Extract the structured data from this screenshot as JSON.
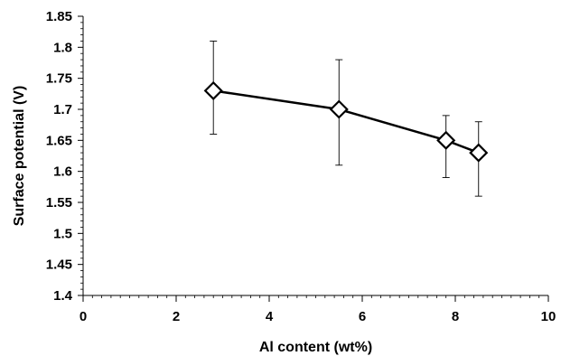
{
  "chart_data": {
    "type": "scatter",
    "title": "",
    "xlabel": "Al content (wt%)",
    "ylabel": "Surface potential (V)",
    "xlim": [
      0,
      10
    ],
    "ylim": [
      1.4,
      1.85
    ],
    "x_ticks": [
      "0",
      "2",
      "4",
      "6",
      "8",
      "10"
    ],
    "y_ticks": [
      "1.4",
      "1.45",
      "1.5",
      "1.55",
      "1.6",
      "1.65",
      "1.7",
      "1.75",
      "1.8",
      "1.85"
    ],
    "grid": false,
    "legend": "none",
    "marker": "diamond-open",
    "line": "solid",
    "color": "#000000",
    "series": [
      {
        "x": [
          2.8,
          5.5,
          7.8,
          8.5
        ],
        "y": [
          1.73,
          1.7,
          1.65,
          1.63
        ],
        "y_upper": [
          1.81,
          1.78,
          1.69,
          1.68
        ],
        "y_lower": [
          1.66,
          1.61,
          1.59,
          1.56
        ]
      }
    ]
  }
}
